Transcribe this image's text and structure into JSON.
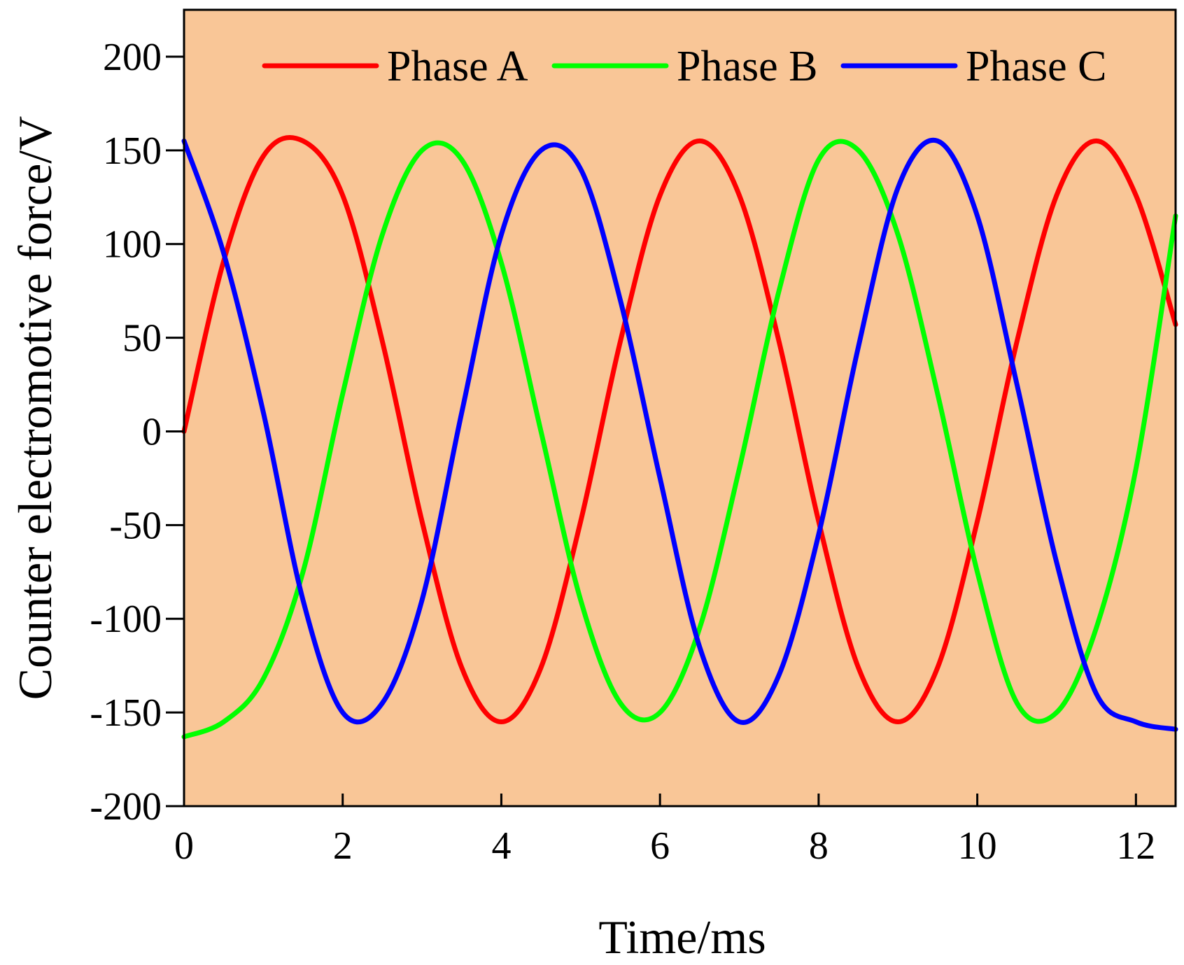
{
  "chart_data": {
    "type": "line",
    "title": "",
    "xlabel": "Time/ms",
    "ylabel": "Counter electromotive force/V",
    "xlim": [
      0,
      12.5
    ],
    "ylim": [
      -200,
      225
    ],
    "xticks": [
      0,
      2,
      4,
      6,
      8,
      10,
      12
    ],
    "yticks": [
      -200,
      -150,
      -100,
      -50,
      0,
      50,
      100,
      150,
      200
    ],
    "grid": false,
    "legend_position": "top",
    "background_color": "#F9C697",
    "series": [
      {
        "name": "Phase A",
        "color": "#FF0000",
        "x": [
          0,
          0.5,
          1.0,
          1.5,
          2.0,
          2.5,
          3.0,
          3.5,
          4.0,
          4.5,
          5.0,
          5.5,
          6.0,
          6.5,
          7.0,
          7.5,
          8.0,
          8.5,
          9.0,
          9.5,
          10.0,
          10.5,
          11.0,
          11.5,
          12.0,
          12.5
        ],
        "values": [
          0,
          91,
          147,
          155,
          126,
          48,
          -48,
          -126,
          -155,
          -126,
          -48,
          48,
          126,
          155,
          126,
          48,
          -48,
          -126,
          -155,
          -126,
          -48,
          48,
          126,
          155,
          126,
          57
        ]
      },
      {
        "name": "Phase B",
        "color": "#00FF00",
        "x": [
          0,
          0.5,
          1.0,
          1.5,
          2.0,
          2.5,
          3.0,
          3.5,
          4.0,
          4.5,
          5.0,
          5.5,
          6.0,
          6.5,
          7.0,
          7.5,
          8.0,
          8.5,
          9.0,
          9.5,
          10.0,
          10.5,
          11.0,
          11.5,
          12.0,
          12.5
        ],
        "values": [
          -163,
          -155,
          -132,
          -75,
          20,
          105,
          150,
          145,
          90,
          0,
          -90,
          -145,
          -150,
          -105,
          -20,
          75,
          145,
          150,
          105,
          20,
          -75,
          -145,
          -150,
          -105,
          -20,
          115
        ]
      },
      {
        "name": "Phase C",
        "color": "#0000FF",
        "x": [
          0,
          0.5,
          1.0,
          1.5,
          2.0,
          2.5,
          3.0,
          3.5,
          4.0,
          4.5,
          5.0,
          5.5,
          6.0,
          6.5,
          7.0,
          7.5,
          8.0,
          8.5,
          9.0,
          9.5,
          10.0,
          10.5,
          11.0,
          11.5,
          12.0,
          12.5
        ],
        "values": [
          155,
          95,
          10,
          -90,
          -150,
          -145,
          -90,
          10,
          105,
          150,
          140,
          70,
          -25,
          -115,
          -155,
          -130,
          -55,
          45,
          130,
          155,
          115,
          25,
          -70,
          -140,
          -155,
          -159
        ]
      }
    ]
  }
}
